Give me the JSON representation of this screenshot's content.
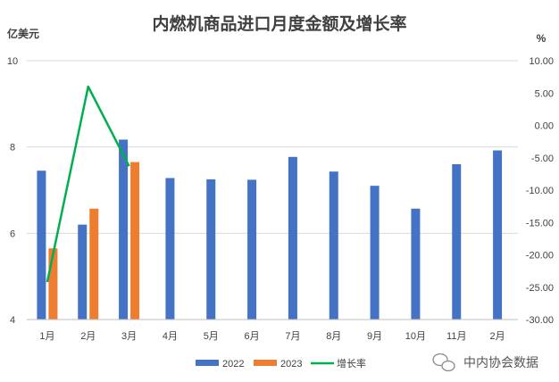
{
  "chart_data": {
    "type": "bar",
    "title": "内燃机商品进口月度金额及增长率",
    "y_left_unit": "亿美元",
    "y_right_unit": "%",
    "categories": [
      "1月",
      "2月",
      "3月",
      "4月",
      "5月",
      "6月",
      "7月",
      "8月",
      "9月",
      "10月",
      "11月",
      "2月"
    ],
    "y_left_lim": [
      4,
      10
    ],
    "y_left_ticks": [
      "4",
      "6",
      "8",
      "10"
    ],
    "y_right_lim": [
      -30,
      10
    ],
    "y_right_ticks": [
      "-30.00",
      "-25.00",
      "-20.00",
      "-15.00",
      "-10.00",
      "-5.00",
      "0.00",
      "5.00",
      "10.00"
    ],
    "series": [
      {
        "name": "2022",
        "type": "bar",
        "axis": "left",
        "color": "#4472C4",
        "values": [
          7.45,
          6.2,
          8.17,
          7.28,
          7.25,
          7.24,
          7.77,
          7.43,
          7.1,
          6.57,
          7.6,
          7.92
        ]
      },
      {
        "name": "2023",
        "type": "bar",
        "axis": "left",
        "color": "#ED7D31",
        "values": [
          5.65,
          6.57,
          7.65,
          null,
          null,
          null,
          null,
          null,
          null,
          null,
          null,
          null
        ]
      },
      {
        "name": "增长率",
        "type": "line",
        "axis": "right",
        "color": "#00B050",
        "values": [
          -24.2,
          6.0,
          -6.3,
          null,
          null,
          null,
          null,
          null,
          null,
          null,
          null,
          null
        ]
      }
    ],
    "legend": "bottom",
    "grid": true
  },
  "watermark": "中内协会数据"
}
